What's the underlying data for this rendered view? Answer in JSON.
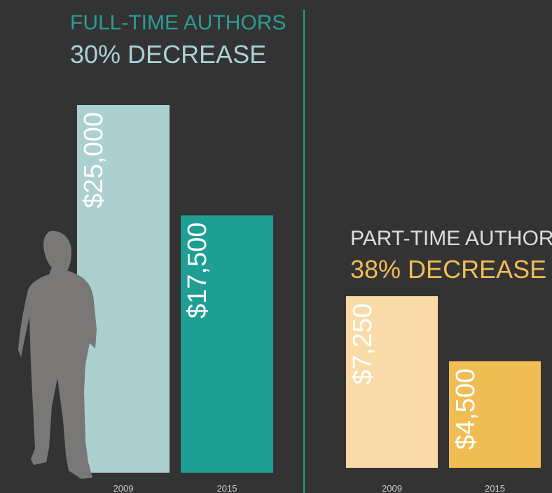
{
  "chart_data": [
    {
      "type": "bar",
      "title": "FULL-TIME AUTHORS",
      "subtitle": "30% DECREASE",
      "categories": [
        "2009",
        "2015"
      ],
      "values": [
        25000,
        17500
      ],
      "value_labels": [
        "$25,000",
        "$17,500"
      ],
      "colors": [
        "#abd0cf",
        "#1f9e94"
      ]
    },
    {
      "type": "bar",
      "title": "PART-TIME AUTHORS",
      "subtitle": "38% DECREASE",
      "categories": [
        "2009",
        "2015"
      ],
      "values": [
        7250,
        4500
      ],
      "value_labels": [
        "$7,250",
        "$4,500"
      ],
      "colors": [
        "#f8dba8",
        "#f0bd55"
      ]
    }
  ]
}
